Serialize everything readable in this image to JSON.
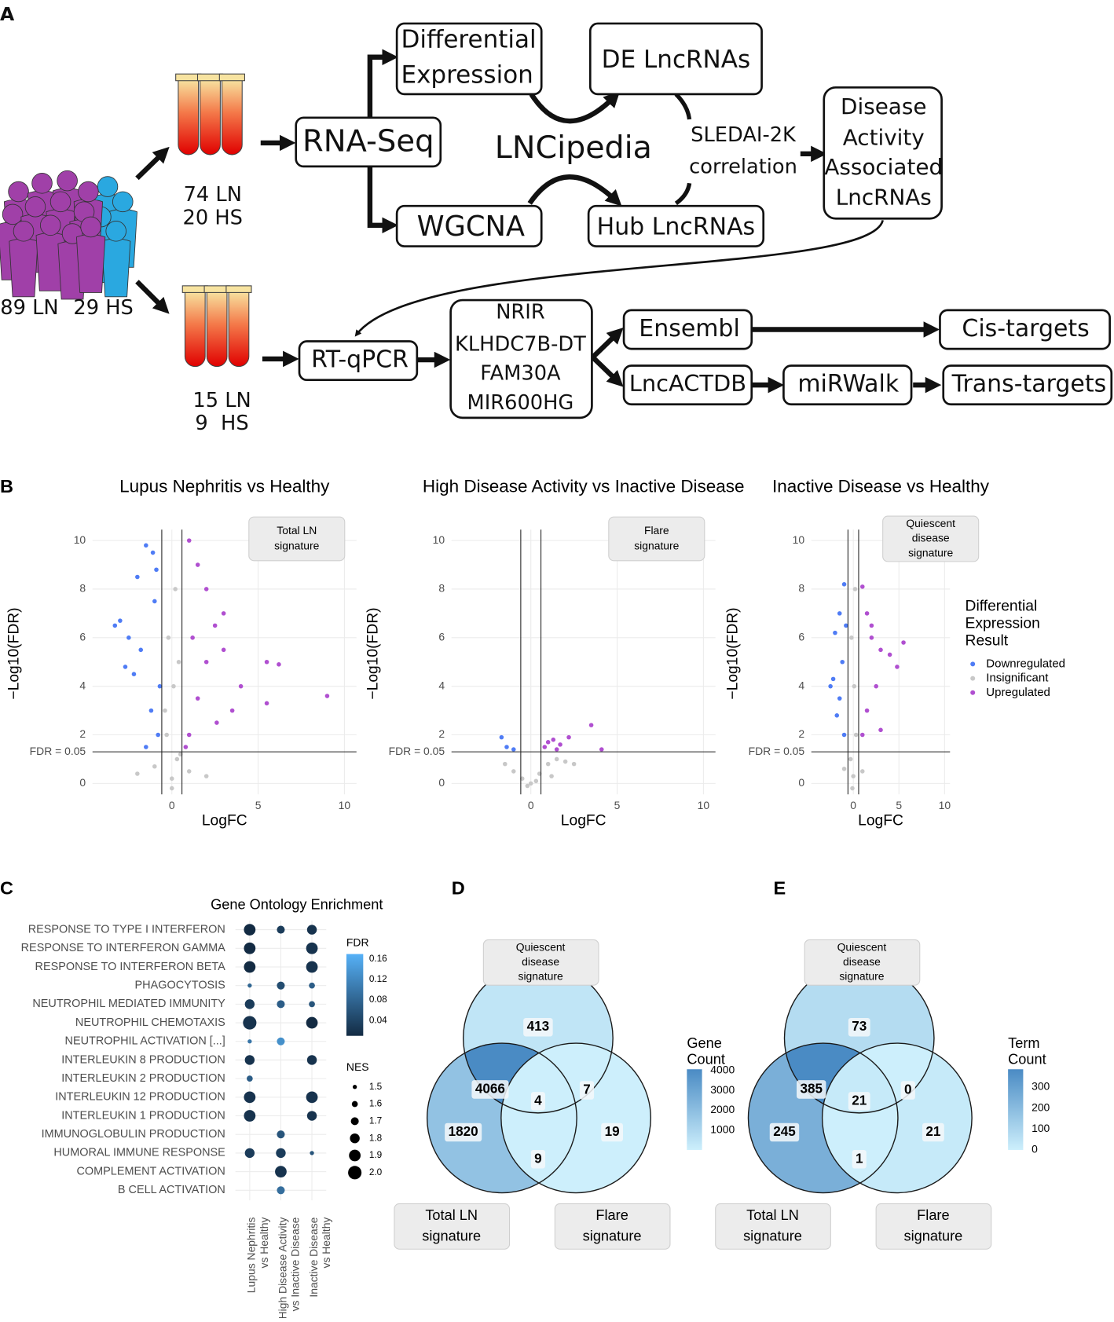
{
  "panel_labels": {
    "a": "A",
    "b": "B",
    "c": "C",
    "d": "D",
    "e": "E"
  },
  "panel_a": {
    "cohort": [
      "89 LN",
      "29 HS"
    ],
    "discovery": [
      "74 LN",
      "20 HS"
    ],
    "validation": [
      "15 LN",
      "9  HS"
    ],
    "rna_seq": "RNA-Seq",
    "differential": [
      "Differential",
      "Expression"
    ],
    "de_lncrnas": "DE LncRNAs",
    "lncipedia": "LNCipedia",
    "sledai": [
      "SLEDAI-2K",
      "correlation"
    ],
    "disease": [
      "Disease",
      "Activity",
      "Associated",
      "LncRNAs"
    ],
    "wgcna": "WGCNA",
    "hub": "Hub LncRNAs",
    "rt_qpcr": "RT-qPCR",
    "genes": [
      "NRIR",
      "KLHDC7B-DT",
      "FAM30A",
      "MIR600HG"
    ],
    "ensembl": "Ensembl",
    "cis": "Cis-targets",
    "lncactdb": "LncACTDB",
    "mirwalk": "miRWalk",
    "trans": "Trans-targets"
  },
  "chart_data": [
    {
      "type": "scatter",
      "title": "Lupus Nephritis vs Healthy",
      "xlabel": "LogFC",
      "ylabel": "−Log10(FDR)",
      "annotation": [
        "Total LN",
        "signature"
      ],
      "hline": {
        "value": 1.301,
        "label": "FDR = 0.05"
      },
      "vlines": [
        -0.585,
        0.585
      ],
      "xlim": [
        -4.6,
        10.7
      ],
      "ylim": [
        -0.45,
        10.45
      ],
      "xticks": [
        0,
        5,
        10
      ],
      "yticks": [
        0,
        2,
        4,
        6,
        8,
        10
      ],
      "grid": true,
      "series": [
        {
          "name": "Downregulated",
          "color": "#4f7cf5",
          "x": [
            -2,
            -1.5,
            -3,
            -2.5,
            -1,
            -2.2,
            -1.2,
            -0.8,
            -1.8,
            -0.9,
            -3.3,
            -1.5,
            -2.7,
            -1.1,
            -0.7
          ],
          "values": [
            8.5,
            9.8,
            6.7,
            6,
            7.5,
            4.5,
            3,
            2,
            5.5,
            8.8,
            6.5,
            1.5,
            4.8,
            9.5,
            4
          ]
        },
        {
          "name": "Insignificant",
          "color": "#c8c8c8",
          "x": [
            0,
            0.3,
            -0.3,
            0.1,
            -0.2,
            0.2,
            0.4,
            -0.4,
            1,
            -1,
            2,
            -2,
            0,
            0.5
          ],
          "values": [
            0.2,
            1,
            2,
            4,
            6,
            8,
            5,
            3,
            0.5,
            0.7,
            0.3,
            0.4,
            -0.2,
            1.2
          ]
        },
        {
          "name": "Upregulated",
          "color": "#b04fd0",
          "x": [
            1,
            1.5,
            2,
            2.5,
            3,
            4,
            5.5,
            6.2,
            5.5,
            9,
            1,
            1.5,
            2,
            3,
            1.2,
            0.8,
            3.5,
            2.6
          ],
          "values": [
            10,
            9,
            8,
            6.5,
            5.5,
            4,
            5,
            4.9,
            3.3,
            3.6,
            2,
            3.5,
            5,
            7,
            6,
            1.5,
            3,
            2.5
          ]
        }
      ]
    },
    {
      "type": "scatter",
      "title": "High Disease Activity vs Inactive Disease",
      "xlabel": "LogFC",
      "ylabel": "−Log10(FDR)",
      "annotation": [
        "Flare",
        "signature"
      ],
      "hline": {
        "value": 1.301,
        "label": "FDR = 0.05"
      },
      "vlines": [
        -0.585,
        0.585
      ],
      "xlim": [
        -4.6,
        10.7
      ],
      "ylim": [
        -0.45,
        10.45
      ],
      "xticks": [
        0,
        5,
        10
      ],
      "yticks": [
        0,
        2,
        4,
        6,
        8,
        10
      ],
      "grid": true,
      "series": [
        {
          "name": "Downregulated",
          "color": "#4f7cf5",
          "x": [
            -1.7,
            -1.4,
            -1.0
          ],
          "values": [
            1.9,
            1.5,
            1.4
          ]
        },
        {
          "name": "Insignificant",
          "color": "#c8c8c8",
          "x": [
            -1.5,
            -1,
            -0.5,
            0,
            0.5,
            1,
            1.5,
            2,
            2.5,
            -0.2,
            0.3,
            1.2
          ],
          "values": [
            0.8,
            0.5,
            0.2,
            0,
            0.4,
            0.8,
            1,
            0.9,
            0.8,
            -0.1,
            0.1,
            0.3
          ]
        },
        {
          "name": "Upregulated",
          "color": "#b04fd0",
          "x": [
            0.8,
            1,
            1.3,
            1.7,
            2.2,
            3.5,
            4.1,
            1.5
          ],
          "values": [
            1.5,
            1.7,
            1.8,
            1.6,
            1.9,
            2.4,
            1.4,
            1.4
          ]
        }
      ]
    },
    {
      "type": "scatter",
      "title": "Inactive Disease vs Healthy",
      "xlabel": "LogFC",
      "ylabel": "−Log10(FDR)",
      "annotation": [
        "Quiescent",
        "disease",
        "signature"
      ],
      "hline": {
        "value": 1.301,
        "label": "FDR = 0.05"
      },
      "vlines": [
        -0.585,
        0.585
      ],
      "xlim": [
        -4.6,
        10.6
      ],
      "ylim": [
        -0.45,
        10.45
      ],
      "xticks": [
        0,
        5,
        10
      ],
      "yticks": [
        0,
        2,
        4,
        6,
        8,
        10
      ],
      "grid": true,
      "legend_title": [
        "Differential",
        "Expression",
        "Result"
      ],
      "series": [
        {
          "name": "Downregulated",
          "color": "#4f7cf5",
          "x": [
            -1,
            -1.5,
            -2,
            -1.2,
            -2.2,
            -1.5,
            -1,
            -1.8,
            -0.8,
            -2.5
          ],
          "values": [
            8.2,
            7,
            6.2,
            5,
            4.3,
            3.5,
            2,
            2.8,
            6.5,
            4
          ]
        },
        {
          "name": "Insignificant",
          "color": "#c8c8c8",
          "x": [
            0,
            -0.3,
            0.3,
            0.1,
            -0.2,
            0.2,
            -0.1,
            1,
            -1
          ],
          "values": [
            0.3,
            1,
            2,
            4,
            6,
            8,
            -0.2,
            0.5,
            0.6
          ]
        },
        {
          "name": "Upregulated",
          "color": "#b04fd0",
          "x": [
            1,
            1.5,
            2,
            3,
            4,
            5.5,
            4.8,
            2.5,
            1.5,
            1,
            3,
            2
          ],
          "values": [
            8.1,
            7,
            6,
            5.5,
            5.3,
            5.8,
            4.8,
            4,
            3,
            2,
            2.2,
            6.5
          ]
        }
      ]
    },
    {
      "type": "dotplot",
      "title": "Gene Ontology Enrichment",
      "categories": [
        "RESPONSE TO TYPE I INTERFERON",
        "RESPONSE TO INTERFERON GAMMA",
        "RESPONSE TO INTERFERON BETA",
        "PHAGOCYTOSIS",
        "NEUTROPHIL MEDIATED IMMUNITY",
        "NEUTROPHIL CHEMOTAXIS",
        "NEUTROPHIL ACTIVATION [...]",
        "INTERLEUKIN 8 PRODUCTION",
        "INTERLEUKIN 2 PRODUCTION",
        "INTERLEUKIN 12 PRODUCTION",
        "INTERLEUKIN 1 PRODUCTION",
        "IMMUNOGLOBULIN PRODUCTION",
        "HUMORAL IMMUNE RESPONSE",
        "COMPLEMENT ACTIVATION",
        "B CELL ACTIVATION"
      ],
      "groups": [
        [
          "Lupus Nephritis",
          "vs Healthy"
        ],
        [
          "High Disease Activity",
          "vs Inactive Disease"
        ],
        [
          "Inactive Disease",
          "vs Healthy"
        ]
      ],
      "nes": [
        [
          1.9,
          1.7,
          1.8
        ],
        [
          1.9,
          null,
          1.9
        ],
        [
          1.9,
          null,
          1.9
        ],
        [
          1.5,
          1.7,
          1.6
        ],
        [
          1.8,
          1.7,
          1.6
        ],
        [
          2.0,
          null,
          1.9
        ],
        [
          1.5,
          1.7,
          null
        ],
        [
          1.8,
          null,
          1.8
        ],
        [
          1.6,
          null,
          null
        ],
        [
          1.9,
          null,
          1.9
        ],
        [
          1.9,
          null,
          1.8
        ],
        [
          null,
          1.7,
          null
        ],
        [
          1.8,
          1.8,
          1.5
        ],
        [
          null,
          1.9,
          null
        ],
        [
          null,
          1.7,
          null
        ]
      ],
      "fdr": [
        [
          0.01,
          0.03,
          0.02
        ],
        [
          0.01,
          null,
          0.02
        ],
        [
          0.01,
          null,
          0.02
        ],
        [
          0.08,
          0.05,
          0.07
        ],
        [
          0.03,
          0.07,
          0.06
        ],
        [
          0.02,
          null,
          0.01
        ],
        [
          0.1,
          0.13,
          null
        ],
        [
          0.02,
          null,
          0.02
        ],
        [
          0.07,
          null,
          null
        ],
        [
          0.02,
          null,
          0.02
        ],
        [
          0.02,
          null,
          0.02
        ],
        [
          null,
          0.06,
          null
        ],
        [
          0.03,
          0.03,
          0.06
        ],
        [
          null,
          0.02,
          null
        ],
        [
          null,
          0.09,
          null
        ]
      ],
      "color_title": "FDR",
      "color_lim": [
        0.01,
        0.17
      ],
      "color_ticks": [
        0.04,
        0.08,
        0.12,
        0.16
      ],
      "colors": [
        "#132b43",
        "#56b1f7"
      ],
      "size_title": "NES",
      "size_lim": [
        1.5,
        2.0
      ],
      "size_ticks": [
        1.5,
        1.6,
        1.7,
        1.8,
        1.9,
        {
          "value": 2.0,
          "label": "2.0"
        }
      ]
    },
    {
      "type": "venn",
      "sets": [
        [
          "Quiescent",
          "disease",
          "signature"
        ],
        [
          "Total LN",
          "signature"
        ],
        [
          "Flare",
          "signature"
        ]
      ],
      "only": [
        413,
        1820,
        19
      ],
      "pairs": [
        4066,
        7,
        9
      ],
      "all": 4,
      "color_title": [
        "Gene",
        "Count"
      ],
      "color_lim": [
        4,
        4066
      ],
      "color_ticks": [
        1000,
        2000,
        3000,
        4000
      ],
      "colors": [
        "#cdeffc",
        "#4a8bc4"
      ]
    },
    {
      "type": "venn",
      "sets": [
        [
          "Quiescent",
          "disease",
          "signature"
        ],
        [
          "Total LN",
          "signature"
        ],
        [
          "Flare",
          "signature"
        ]
      ],
      "only": [
        73,
        245,
        21
      ],
      "pairs": [
        385,
        0,
        1
      ],
      "all": 21,
      "color_title": [
        "Term",
        "Count"
      ],
      "color_lim": [
        0,
        385
      ],
      "color_ticks": [
        0,
        100,
        200,
        300
      ],
      "colors": [
        "#cdeffc",
        "#4a8bc4"
      ]
    }
  ]
}
